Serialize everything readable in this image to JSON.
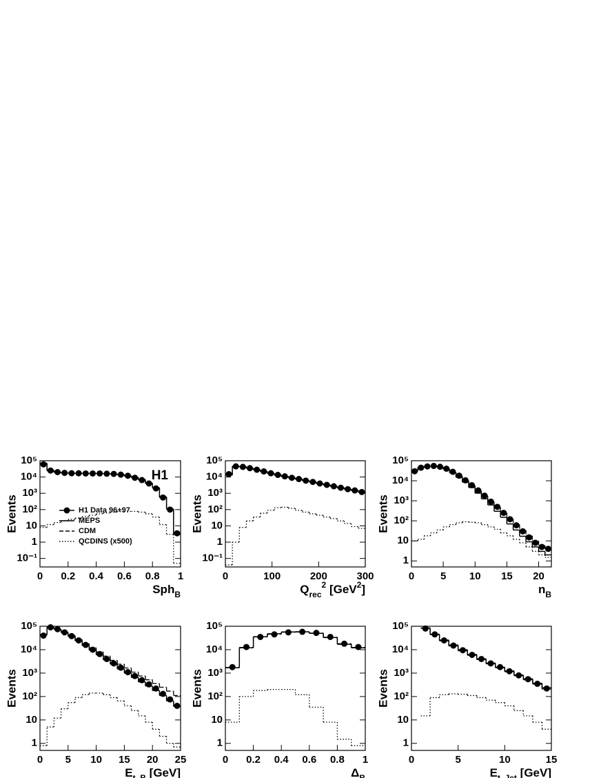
{
  "chart_data": [
    {
      "type": "histogram",
      "annotation": "H1",
      "legend": true,
      "legend_position": "lower left",
      "y_label": "Events",
      "x_label": [
        {
          "text": "Sph"
        },
        {
          "text": "B",
          "shift": "sub"
        }
      ],
      "log_y": true,
      "xlim": [
        0,
        1
      ],
      "xticks": [
        0,
        0.2,
        0.4,
        0.6,
        0.8,
        1
      ],
      "ylim": [
        0.03,
        100000
      ],
      "yticks": [
        {
          "value": 0.1,
          "label": "10⁻¹"
        },
        1,
        10,
        {
          "value": 100,
          "label": "10²"
        },
        {
          "value": 1000,
          "label": "10³"
        },
        {
          "value": 10000,
          "label": "10⁴"
        },
        {
          "value": 100000,
          "label": "10⁵"
        }
      ],
      "bins": [
        0,
        0.05,
        0.1,
        0.15,
        0.2,
        0.25,
        0.3,
        0.35,
        0.4,
        0.45,
        0.5,
        0.55,
        0.6,
        0.65,
        0.7,
        0.75,
        0.8,
        0.85,
        0.9,
        0.95,
        1
      ],
      "series": [
        {
          "name": "H1 Data 96+97",
          "style": "markers",
          "color": "#000000",
          "values": [
            60000,
            25000,
            20000,
            18000,
            17000,
            17000,
            16500,
            16500,
            16500,
            16000,
            15500,
            14000,
            12000,
            9000,
            6500,
            4000,
            2000,
            550,
            100,
            3.5
          ]
        },
        {
          "name": "MEPS",
          "style": "solid",
          "color": "#000000",
          "values": [
            70000,
            26000,
            20000,
            18000,
            17000,
            17000,
            16500,
            16500,
            16500,
            16000,
            15500,
            14000,
            12000,
            9500,
            7000,
            4200,
            2200,
            600,
            110,
            3
          ]
        },
        {
          "name": "CDM",
          "style": "dashed",
          "color": "#000000",
          "values": [
            65000,
            24000,
            19000,
            17500,
            17000,
            16800,
            16500,
            16500,
            16300,
            16000,
            15000,
            13500,
            11500,
            9000,
            6500,
            4000,
            2000,
            550,
            100,
            3.2
          ]
        },
        {
          "name": "QCDINS (x500)",
          "style": "dotted",
          "color": "#000000",
          "values": [
            8,
            12,
            16,
            20,
            25,
            30,
            38,
            45,
            55,
            62,
            70,
            75,
            78,
            78,
            70,
            55,
            35,
            12,
            3,
            0.05
          ]
        }
      ]
    },
    {
      "type": "histogram",
      "y_label": "Events",
      "x_label": [
        {
          "text": "Q"
        },
        {
          "text": "rec",
          "shift": "sub"
        },
        {
          "text": "2",
          "shift": "sup"
        },
        {
          "text": " [GeV"
        },
        {
          "text": "2",
          "shift": "sup"
        },
        {
          "text": "]"
        }
      ],
      "log_y": true,
      "xlim": [
        0,
        300
      ],
      "xticks": [
        0,
        100,
        200,
        300
      ],
      "ylim": [
        0.03,
        100000
      ],
      "yticks": [
        {
          "value": 0.1,
          "label": "10⁻¹"
        },
        1,
        10,
        {
          "value": 100,
          "label": "10²"
        },
        {
          "value": 1000,
          "label": "10³"
        },
        {
          "value": 10000,
          "label": "10⁴"
        },
        {
          "value": 100000,
          "label": "10⁵"
        }
      ],
      "bins": [
        0,
        15,
        30,
        45,
        60,
        75,
        90,
        105,
        120,
        135,
        150,
        165,
        180,
        195,
        210,
        225,
        240,
        255,
        270,
        285,
        300
      ],
      "series": [
        {
          "style": "markers",
          "color": "#000000",
          "values": [
            15000,
            45000,
            42000,
            35000,
            28000,
            22000,
            17000,
            13500,
            11000,
            9000,
            7500,
            6000,
            5000,
            4000,
            3300,
            2700,
            2200,
            1800,
            1500,
            1200
          ]
        },
        {
          "style": "solid",
          "color": "#000000",
          "values": [
            14000,
            46000,
            43000,
            35000,
            28000,
            22000,
            17000,
            13500,
            11000,
            9000,
            7500,
            6000,
            5000,
            4000,
            3300,
            2700,
            2200,
            1800,
            1500,
            1200
          ]
        },
        {
          "style": "dashed",
          "color": "#000000",
          "values": [
            13000,
            44000,
            42000,
            34000,
            27000,
            21000,
            16500,
            13000,
            10500,
            8800,
            7300,
            5900,
            4900,
            3900,
            3200,
            2600,
            2100,
            1750,
            1450,
            1150
          ]
        },
        {
          "style": "dotted",
          "color": "#000000",
          "values": [
            0.04,
            1,
            8,
            20,
            35,
            60,
            90,
            130,
            140,
            120,
            90,
            70,
            55,
            45,
            35,
            28,
            20,
            14,
            9,
            7
          ]
        }
      ]
    },
    {
      "type": "histogram",
      "y_label": "Events",
      "x_label": [
        {
          "text": "n"
        },
        {
          "text": "B",
          "shift": "sub"
        }
      ],
      "log_y": true,
      "xlim": [
        0,
        22
      ],
      "xticks": [
        0,
        5,
        10,
        15,
        20
      ],
      "ylim": [
        0.5,
        100000
      ],
      "yticks": [
        1,
        10,
        {
          "value": 100,
          "label": "10²"
        },
        {
          "value": 1000,
          "label": "10³"
        },
        {
          "value": 10000,
          "label": "10⁴"
        },
        {
          "value": 100000,
          "label": "10⁵"
        }
      ],
      "bins": [
        0,
        1,
        2,
        3,
        4,
        5,
        6,
        7,
        8,
        9,
        10,
        11,
        12,
        13,
        14,
        15,
        16,
        17,
        18,
        19,
        20,
        21,
        22
      ],
      "series": [
        {
          "style": "markers",
          "color": "#000000",
          "values": [
            30000,
            45000,
            52000,
            55000,
            50000,
            40000,
            28000,
            18000,
            10500,
            6000,
            3300,
            1800,
            900,
            500,
            250,
            120,
            60,
            30,
            15,
            8,
            5,
            4
          ]
        },
        {
          "style": "solid",
          "color": "#000000",
          "values": [
            32000,
            47000,
            54000,
            55000,
            48000,
            37000,
            25000,
            15000,
            8500,
            4600,
            2400,
            1250,
            620,
            300,
            150,
            70,
            35,
            17,
            9,
            5,
            3,
            2
          ]
        },
        {
          "style": "dashed",
          "color": "#000000",
          "values": [
            30000,
            45000,
            52000,
            54000,
            49000,
            39000,
            27000,
            17000,
            10000,
            5800,
            3200,
            1750,
            900,
            480,
            250,
            125,
            65,
            34,
            18,
            10,
            6,
            4
          ]
        },
        {
          "style": "dotted",
          "color": "#000000",
          "values": [
            10,
            12,
            18,
            25,
            35,
            50,
            65,
            80,
            90,
            85,
            80,
            65,
            50,
            38,
            25,
            18,
            12,
            8,
            5,
            3,
            2,
            1.5
          ]
        }
      ]
    },
    {
      "type": "histogram",
      "y_label": "Events",
      "x_label": [
        {
          "text": "E"
        },
        {
          "text": "t, B",
          "shift": "sub"
        },
        {
          "text": "  [GeV]"
        }
      ],
      "log_y": true,
      "xlim": [
        0,
        25
      ],
      "xticks": [
        0,
        5,
        10,
        15,
        20,
        25
      ],
      "ylim": [
        0.5,
        100000
      ],
      "yticks": [
        1,
        10,
        {
          "value": 100,
          "label": "10²"
        },
        {
          "value": 1000,
          "label": "10³"
        },
        {
          "value": 10000,
          "label": "10⁴"
        },
        {
          "value": 100000,
          "label": "10⁵"
        }
      ],
      "bins": [
        0,
        1.25,
        2.5,
        3.75,
        5,
        6.25,
        7.5,
        8.75,
        10,
        11.25,
        12.5,
        13.75,
        15,
        16.25,
        17.5,
        18.75,
        20,
        21.25,
        22.5,
        23.75,
        25
      ],
      "series": [
        {
          "style": "markers",
          "color": "#000000",
          "values": [
            40000,
            90000,
            75000,
            55000,
            38000,
            25000,
            16000,
            10000,
            6500,
            4000,
            2600,
            1700,
            1100,
            750,
            500,
            330,
            220,
            130,
            75,
            40
          ]
        },
        {
          "style": "solid",
          "color": "#000000",
          "values": [
            45000,
            92000,
            74000,
            54000,
            37000,
            24000,
            15000,
            9500,
            6000,
            3700,
            2400,
            1500,
            1000,
            650,
            420,
            280,
            180,
            110,
            65,
            38
          ]
        },
        {
          "style": "dashed",
          "color": "#000000",
          "values": [
            42000,
            88000,
            74000,
            56000,
            40000,
            27000,
            18000,
            12000,
            8000,
            5300,
            3500,
            2400,
            1650,
            1100,
            750,
            520,
            360,
            250,
            170,
            110
          ]
        },
        {
          "style": "dotted",
          "color": "#000000",
          "values": [
            0.8,
            5,
            12,
            30,
            55,
            90,
            120,
            140,
            140,
            120,
            90,
            65,
            40,
            25,
            15,
            8,
            4,
            2,
            1,
            0.7
          ]
        }
      ]
    },
    {
      "type": "histogram",
      "y_label": "Events",
      "x_label": [
        {
          "text": "Δ"
        },
        {
          "text": "B",
          "shift": "sub"
        }
      ],
      "log_y": true,
      "xlim": [
        0,
        1
      ],
      "xticks": [
        0,
        0.2,
        0.4,
        0.6,
        0.8,
        1
      ],
      "ylim": [
        0.5,
        100000
      ],
      "yticks": [
        1,
        10,
        {
          "value": 100,
          "label": "10²"
        },
        {
          "value": 1000,
          "label": "10³"
        },
        {
          "value": 10000,
          "label": "10⁴"
        },
        {
          "value": 100000,
          "label": "10⁵"
        }
      ],
      "bins": [
        0,
        0.1,
        0.2,
        0.3,
        0.4,
        0.5,
        0.6,
        0.7,
        0.8,
        0.9,
        1
      ],
      "series": [
        {
          "style": "markers",
          "color": "#000000",
          "values": [
            1800,
            13000,
            35000,
            45000,
            55000,
            58000,
            52000,
            35000,
            18000,
            13000
          ]
        },
        {
          "style": "solid",
          "color": "#000000",
          "values": [
            1700,
            12000,
            36000,
            48000,
            57000,
            58000,
            50000,
            33000,
            17000,
            12000
          ]
        },
        {
          "style": "dashed",
          "color": "#000000",
          "values": [
            1750,
            12500,
            35000,
            46000,
            56000,
            57000,
            51000,
            34000,
            18000,
            12500
          ]
        },
        {
          "style": "dotted",
          "color": "#000000",
          "values": [
            8,
            100,
            180,
            200,
            200,
            120,
            35,
            8,
            1.5,
            0.8
          ]
        }
      ]
    },
    {
      "type": "histogram",
      "y_label": "Events",
      "x_label": [
        {
          "text": "E"
        },
        {
          "text": "t, Jet",
          "shift": "sub"
        },
        {
          "text": " [GeV]"
        }
      ],
      "log_y": true,
      "xlim": [
        0,
        15
      ],
      "xticks": [
        0,
        5,
        10,
        15
      ],
      "ylim": [
        0.5,
        100000
      ],
      "yticks": [
        1,
        10,
        {
          "value": 100,
          "label": "10²"
        },
        {
          "value": 1000,
          "label": "10³"
        },
        {
          "value": 10000,
          "label": "10⁴"
        },
        {
          "value": 100000,
          "label": "10⁵"
        }
      ],
      "bins": [
        1,
        2,
        3,
        4,
        5,
        6,
        7,
        8,
        9,
        10,
        11,
        12,
        13,
        14,
        15
      ],
      "series": [
        {
          "style": "markers",
          "color": "#000000",
          "values": [
            80000,
            45000,
            25000,
            15000,
            9500,
            6000,
            4000,
            2600,
            1800,
            1200,
            800,
            550,
            350,
            220
          ]
        },
        {
          "style": "solid",
          "color": "#000000",
          "values": [
            85000,
            44000,
            24000,
            14500,
            9000,
            5800,
            3800,
            2500,
            1700,
            1150,
            780,
            520,
            340,
            210
          ]
        },
        {
          "style": "dashed",
          "color": "#000000",
          "values": [
            82000,
            46000,
            26000,
            16000,
            10000,
            6300,
            4100,
            2700,
            1800,
            1250,
            830,
            570,
            370,
            240
          ]
        },
        {
          "style": "dotted",
          "color": "#000000",
          "values": [
            15,
            90,
            120,
            130,
            125,
            110,
            90,
            70,
            55,
            40,
            25,
            15,
            8,
            4
          ]
        }
      ]
    }
  ]
}
